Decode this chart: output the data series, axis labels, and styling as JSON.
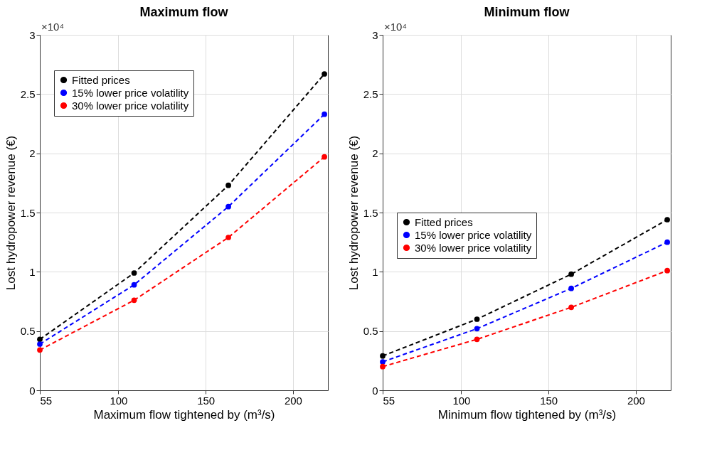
{
  "chart_data": [
    {
      "type": "line",
      "title": "Maximum flow",
      "xlabel": "Maximum flow tightened by (m³/s)",
      "ylabel": "Lost hydropower revenue (€)",
      "annotations": [
        "×10⁴"
      ],
      "x": [
        55,
        109,
        163,
        218
      ],
      "xlim": [
        55,
        220
      ],
      "xticks": [
        55,
        100,
        150,
        200
      ],
      "ylim": [
        0,
        3
      ],
      "yticks": [
        0,
        0.5,
        1,
        1.5,
        2,
        2.5,
        3
      ],
      "grid": true,
      "legend": "top left",
      "marker": "circle",
      "line_style": "dashed",
      "series": [
        {
          "name": "Fitted prices",
          "color": "#000000",
          "values": [
            0.43,
            0.99,
            1.73,
            2.67
          ]
        },
        {
          "name": "15% lower price volatility",
          "color": "#0000ff",
          "values": [
            0.39,
            0.89,
            1.55,
            2.33
          ]
        },
        {
          "name": "30% lower price volatility",
          "color": "#ff0000",
          "values": [
            0.34,
            0.76,
            1.29,
            1.97
          ]
        }
      ]
    },
    {
      "type": "line",
      "title": "Minimum flow",
      "xlabel": "Minimum flow tightened by (m³/s)",
      "ylabel": "Lost hydropower revenue (€)",
      "annotations": [
        "×10⁴"
      ],
      "x": [
        55,
        109,
        163,
        218
      ],
      "xlim": [
        55,
        220
      ],
      "xticks": [
        55,
        100,
        150,
        200
      ],
      "ylim": [
        0,
        3
      ],
      "yticks": [
        0,
        0.5,
        1,
        1.5,
        2,
        2.5,
        3
      ],
      "grid": true,
      "legend": "left",
      "marker": "circle",
      "line_style": "dashed",
      "series": [
        {
          "name": "Fitted prices",
          "color": "#000000",
          "values": [
            0.29,
            0.6,
            0.98,
            1.44
          ]
        },
        {
          "name": "15% lower price volatility",
          "color": "#0000ff",
          "values": [
            0.24,
            0.52,
            0.86,
            1.25
          ]
        },
        {
          "name": "30% lower price volatility",
          "color": "#ff0000",
          "values": [
            0.2,
            0.43,
            0.7,
            1.01
          ]
        }
      ]
    }
  ]
}
